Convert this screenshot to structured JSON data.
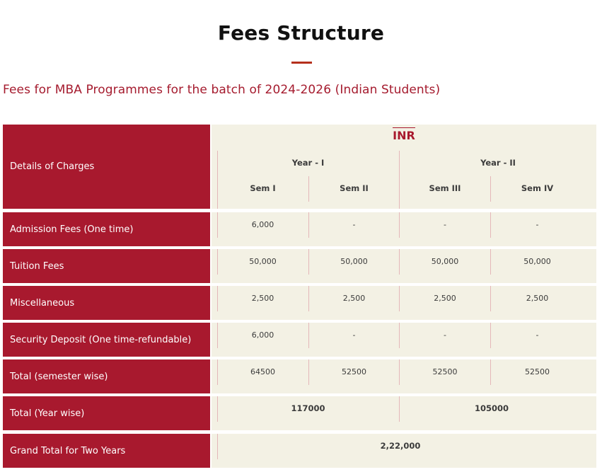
{
  "page": {
    "title": "Fees Structure",
    "subtitle": "Fees for MBA Programmes for the batch of 2024-2026 (Indian Students)",
    "colors": {
      "brand_red": "#a8192e",
      "cream": "#f3f1e4",
      "accent_underline": "#b5301c"
    }
  },
  "table": {
    "corner_label": "Details of Charges",
    "currency": "INR",
    "years": [
      "Year - I",
      "Year - II"
    ],
    "semesters": [
      "Sem I",
      "Sem II",
      "Sem III",
      "Sem IV"
    ],
    "rows": [
      {
        "label": "Admission Fees (One time)",
        "values": [
          "6,000",
          "-",
          "-",
          "-"
        ]
      },
      {
        "label": "Tuition Fees",
        "values": [
          "50,000",
          "50,000",
          "50,000",
          "50,000"
        ]
      },
      {
        "label": "Miscellaneous",
        "values": [
          "2,500",
          "2,500",
          "2,500",
          "2,500"
        ]
      },
      {
        "label": "Security Deposit (One time-refundable)",
        "values": [
          "6,000",
          "-",
          "-",
          "-"
        ]
      },
      {
        "label": "Total (semester wise)",
        "values": [
          "64500",
          "52500",
          "52500",
          "52500"
        ]
      }
    ],
    "year_total": {
      "label": "Total (Year wise)",
      "values": [
        "117000",
        "105000"
      ]
    },
    "grand_total": {
      "label": "Grand Total for Two Years",
      "value": "2,22,000"
    }
  }
}
